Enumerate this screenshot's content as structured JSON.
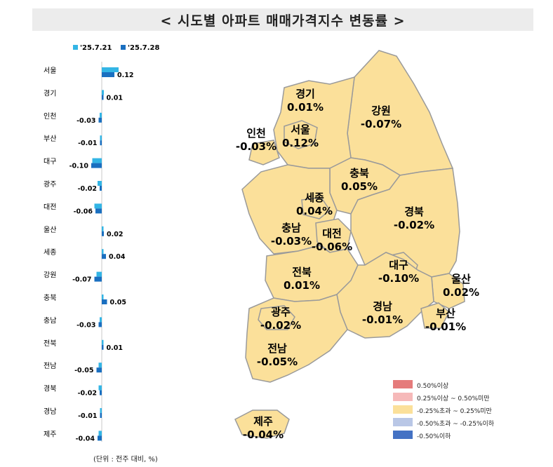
{
  "title": "< 시도별 아파트 매매가격지수 변동률 >",
  "unit_note": "(단위 : 전주 대비, %)",
  "colors": {
    "series_prev": "#33b5e5",
    "series_curr": "#1a6fc0",
    "map_fill": "#fbe09a",
    "map_stroke": "#9a9a9a",
    "title_bg": "#ececec"
  },
  "chart_data": {
    "type": "bar",
    "orientation": "horizontal",
    "categories": [
      "서울",
      "경기",
      "인천",
      "부산",
      "대구",
      "광주",
      "대전",
      "울산",
      "세종",
      "강원",
      "충북",
      "충남",
      "전북",
      "전남",
      "경북",
      "경남",
      "제주"
    ],
    "series": [
      {
        "name": "'25.7.21",
        "values": [
          0.16,
          0.02,
          -0.02,
          -0.01,
          -0.09,
          -0.04,
          -0.07,
          0.01,
          0.0,
          -0.05,
          0.0,
          -0.02,
          0.01,
          -0.03,
          -0.03,
          -0.01,
          -0.03
        ]
      },
      {
        "name": "'25.7.28",
        "values": [
          0.12,
          0.01,
          -0.03,
          -0.01,
          -0.1,
          -0.02,
          -0.06,
          0.02,
          0.04,
          -0.07,
          0.05,
          -0.03,
          0.01,
          -0.05,
          -0.02,
          -0.01,
          -0.04
        ]
      }
    ],
    "data_labels": [
      "0.12",
      "0.01",
      "-0.03",
      "-0.01",
      "-0.10",
      "-0.02",
      "-0.06",
      "0.02",
      "0.04",
      "-0.07",
      "0.05",
      "-0.03",
      "0.01",
      "-0.05",
      "-0.02",
      "-0.01",
      "-0.04"
    ],
    "legend": [
      "'25.7.21",
      "'25.7.28"
    ],
    "legend_position": "top-left"
  },
  "map": {
    "regions": [
      {
        "name": "경기",
        "value": "0.01%"
      },
      {
        "name": "강원",
        "value": "-0.07%"
      },
      {
        "name": "인천",
        "value": "-0.03%"
      },
      {
        "name": "서울",
        "value": "0.12%"
      },
      {
        "name": "충북",
        "value": "0.05%"
      },
      {
        "name": "세종",
        "value": "0.04%"
      },
      {
        "name": "경북",
        "value": "-0.02%"
      },
      {
        "name": "충남",
        "value": "-0.03%"
      },
      {
        "name": "대전",
        "value": "-0.06%"
      },
      {
        "name": "대구",
        "value": "-0.10%"
      },
      {
        "name": "울산",
        "value": "0.02%"
      },
      {
        "name": "전북",
        "value": "0.01%"
      },
      {
        "name": "경남",
        "value": "-0.01%"
      },
      {
        "name": "부산",
        "value": "-0.01%"
      },
      {
        "name": "광주",
        "value": "-0.02%"
      },
      {
        "name": "전남",
        "value": "-0.05%"
      },
      {
        "name": "제주",
        "value": "-0.04%"
      }
    ]
  },
  "legend_scale": [
    {
      "label": "0.50%이상",
      "color": "#e57b7b"
    },
    {
      "label": "0.25%이상 ~ 0.50%미만",
      "color": "#f6b9b9"
    },
    {
      "label": "-0.25%초과 ~ 0.25%미만",
      "color": "#fbe09a"
    },
    {
      "label": "-0.50%초과 ~ -0.25%이하",
      "color": "#b9c7e6"
    },
    {
      "label": "-0.50%이하",
      "color": "#4472c4"
    }
  ]
}
